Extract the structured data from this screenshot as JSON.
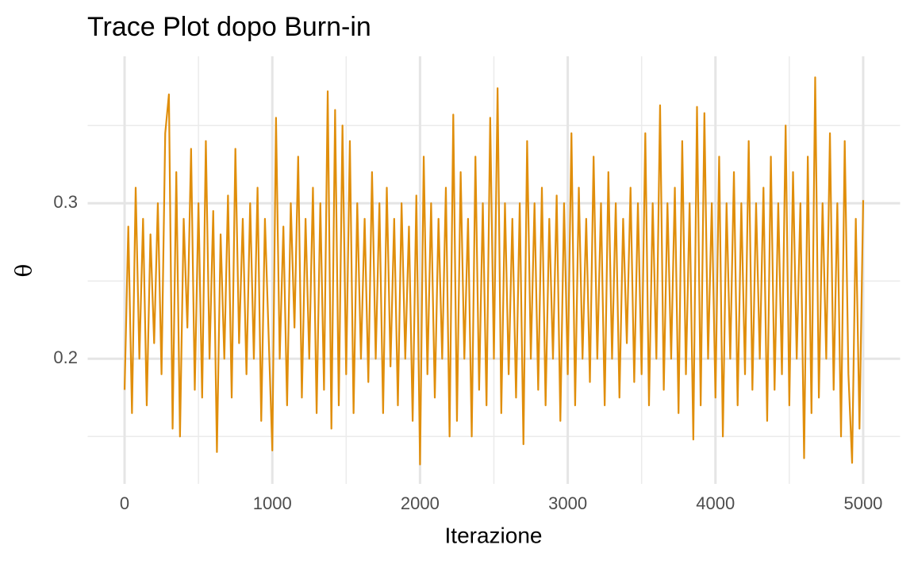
{
  "chart_data": {
    "type": "line",
    "title": "Trace Plot dopo Burn-in",
    "x_label": "Iterazione",
    "y_label": "θ",
    "x": [
      0,
      25,
      50,
      75,
      100,
      125,
      150,
      175,
      200,
      225,
      250,
      275,
      300,
      325,
      350,
      375,
      400,
      425,
      450,
      475,
      500,
      525,
      550,
      575,
      600,
      625,
      650,
      675,
      700,
      725,
      750,
      775,
      800,
      825,
      850,
      875,
      900,
      925,
      950,
      975,
      1000,
      1025,
      1050,
      1075,
      1100,
      1125,
      1150,
      1175,
      1200,
      1225,
      1250,
      1275,
      1300,
      1325,
      1350,
      1375,
      1400,
      1425,
      1450,
      1475,
      1500,
      1525,
      1550,
      1575,
      1600,
      1625,
      1650,
      1675,
      1700,
      1725,
      1750,
      1775,
      1800,
      1825,
      1850,
      1875,
      1900,
      1925,
      1950,
      1975,
      2000,
      2025,
      2050,
      2075,
      2100,
      2125,
      2150,
      2175,
      2200,
      2225,
      2250,
      2275,
      2300,
      2325,
      2350,
      2375,
      2400,
      2425,
      2450,
      2475,
      2500,
      2525,
      2550,
      2575,
      2600,
      2625,
      2650,
      2675,
      2700,
      2725,
      2750,
      2775,
      2800,
      2825,
      2850,
      2875,
      2900,
      2925,
      2950,
      2975,
      3000,
      3025,
      3050,
      3075,
      3100,
      3125,
      3150,
      3175,
      3200,
      3225,
      3250,
      3275,
      3300,
      3325,
      3350,
      3375,
      3400,
      3425,
      3450,
      3475,
      3500,
      3525,
      3550,
      3575,
      3600,
      3625,
      3650,
      3675,
      3700,
      3725,
      3750,
      3775,
      3800,
      3825,
      3850,
      3875,
      3900,
      3925,
      3950,
      3975,
      4000,
      4025,
      4050,
      4075,
      4100,
      4125,
      4150,
      4175,
      4200,
      4225,
      4250,
      4275,
      4300,
      4325,
      4350,
      4375,
      4400,
      4425,
      4450,
      4475,
      4500,
      4525,
      4550,
      4575,
      4600,
      4625,
      4650,
      4675,
      4700,
      4725,
      4750,
      4775,
      4800,
      4825,
      4850,
      4875,
      4900,
      4925,
      4950,
      4975,
      5000
    ],
    "series": [
      {
        "color": "#e08e0b",
        "values": [
          0.18,
          0.285,
          0.165,
          0.31,
          0.2,
          0.29,
          0.17,
          0.28,
          0.21,
          0.3,
          0.19,
          0.345,
          0.37,
          0.155,
          0.32,
          0.15,
          0.29,
          0.22,
          0.335,
          0.18,
          0.3,
          0.175,
          0.34,
          0.2,
          0.295,
          0.14,
          0.28,
          0.2,
          0.305,
          0.175,
          0.335,
          0.21,
          0.29,
          0.19,
          0.3,
          0.2,
          0.31,
          0.16,
          0.29,
          0.215,
          0.141,
          0.355,
          0.2,
          0.285,
          0.17,
          0.3,
          0.22,
          0.33,
          0.175,
          0.29,
          0.2,
          0.31,
          0.165,
          0.3,
          0.18,
          0.372,
          0.155,
          0.36,
          0.17,
          0.35,
          0.19,
          0.34,
          0.165,
          0.3,
          0.2,
          0.29,
          0.185,
          0.32,
          0.2,
          0.3,
          0.165,
          0.31,
          0.195,
          0.29,
          0.17,
          0.3,
          0.2,
          0.285,
          0.16,
          0.305,
          0.132,
          0.33,
          0.19,
          0.3,
          0.175,
          0.29,
          0.2,
          0.31,
          0.15,
          0.357,
          0.16,
          0.32,
          0.2,
          0.29,
          0.15,
          0.33,
          0.18,
          0.3,
          0.17,
          0.355,
          0.2,
          0.374,
          0.165,
          0.3,
          0.19,
          0.29,
          0.175,
          0.3,
          0.145,
          0.34,
          0.2,
          0.3,
          0.18,
          0.31,
          0.17,
          0.29,
          0.2,
          0.305,
          0.16,
          0.3,
          0.19,
          0.345,
          0.17,
          0.31,
          0.2,
          0.29,
          0.185,
          0.33,
          0.2,
          0.3,
          0.17,
          0.32,
          0.2,
          0.3,
          0.175,
          0.29,
          0.21,
          0.31,
          0.185,
          0.3,
          0.19,
          0.345,
          0.17,
          0.3,
          0.2,
          0.363,
          0.18,
          0.3,
          0.2,
          0.31,
          0.165,
          0.34,
          0.19,
          0.3,
          0.148,
          0.362,
          0.17,
          0.358,
          0.2,
          0.3,
          0.175,
          0.33,
          0.15,
          0.3,
          0.2,
          0.32,
          0.17,
          0.3,
          0.19,
          0.34,
          0.18,
          0.3,
          0.2,
          0.31,
          0.16,
          0.33,
          0.18,
          0.3,
          0.19,
          0.35,
          0.17,
          0.32,
          0.2,
          0.3,
          0.136,
          0.33,
          0.165,
          0.381,
          0.175,
          0.3,
          0.2,
          0.345,
          0.18,
          0.3,
          0.15,
          0.34,
          0.19,
          0.133,
          0.29,
          0.155,
          0.302
        ]
      }
    ],
    "xlim": [
      -250,
      5250
    ],
    "xticks": [
      0,
      1000,
      2000,
      3000,
      4000,
      5000
    ],
    "xminor": [
      500,
      1500,
      2500,
      3500,
      4500
    ],
    "ylim": [
      0.1195,
      0.3945
    ],
    "yticks": [
      0.2,
      0.3
    ],
    "yminor": [
      0.15,
      0.25,
      0.35
    ],
    "grid": true
  }
}
